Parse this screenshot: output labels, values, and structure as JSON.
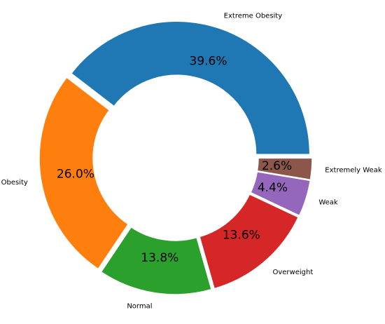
{
  "chart_data": {
    "type": "pie",
    "donut": true,
    "title": "",
    "start_angle_deg": 0,
    "direction": "counterclockwise",
    "categories": [
      "Extreme Obesity",
      "Obesity",
      "Normal",
      "Overweight",
      "Weak",
      "Extremely Weak"
    ],
    "values": [
      39.6,
      26.0,
      13.8,
      13.6,
      4.4,
      2.6
    ],
    "percent_labels": [
      "39.6%",
      "26.0%",
      "13.8%",
      "13.6%",
      "4.4%",
      "2.6%"
    ],
    "colors": [
      "#1f77b4",
      "#ff7f0e",
      "#2ca02c",
      "#d62728",
      "#9467bd",
      "#8c564b"
    ],
    "legend": "none"
  }
}
